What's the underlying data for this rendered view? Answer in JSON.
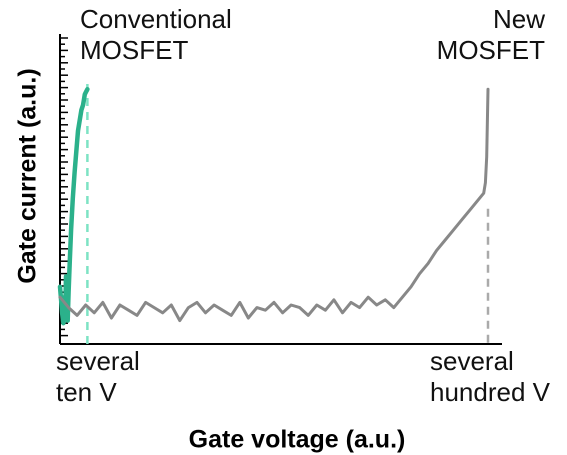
{
  "chart_data": {
    "type": "line",
    "xlabel": "Gate voltage (a.u.)",
    "ylabel": "Gate current (a.u.)",
    "x_tick_labels": [
      {
        "line1": "several",
        "line2": "ten V"
      },
      {
        "line1": "several",
        "line2": "hundred V"
      }
    ],
    "annotations": [
      {
        "line1": "Conventional",
        "line2": "MOSFET"
      },
      {
        "line1": "New",
        "line2": "MOSFET"
      }
    ],
    "xlim": [
      0,
      100
    ],
    "ylim": [
      0,
      100
    ],
    "grid": false,
    "series": [
      {
        "color": "#2bb18b",
        "x": [
          0.0,
          0.3,
          0.5,
          0.8,
          1.0,
          1.2,
          1.4,
          1.6,
          1.8,
          2.0,
          2.3,
          2.6,
          3.0,
          3.4,
          3.8,
          4.2,
          4.6,
          5.0,
          5.4,
          5.8,
          6.1,
          6.4
        ],
        "y": [
          22,
          16,
          12,
          8,
          18,
          10,
          26,
          14,
          9,
          20,
          32,
          44,
          56,
          66,
          74,
          82,
          86,
          90,
          92,
          96,
          97,
          98
        ]
      },
      {
        "color": "#888888",
        "x": [
          0,
          2,
          4,
          6,
          8,
          10,
          12,
          14,
          16,
          18,
          20,
          22,
          24,
          26,
          28,
          30,
          32,
          34,
          36,
          38,
          40,
          42,
          44,
          46,
          48,
          50,
          52,
          54,
          56,
          58,
          60,
          62,
          64,
          66,
          68,
          70,
          72,
          74,
          76,
          78,
          80,
          82,
          84,
          86,
          88,
          90,
          92,
          94,
          96,
          98,
          99,
          99.4,
          99.7,
          100
        ],
        "y": [
          18,
          14,
          11,
          15,
          12,
          16,
          10,
          15,
          13,
          11,
          16,
          14,
          12,
          15,
          9,
          14,
          16,
          12,
          15,
          13,
          11,
          16,
          10,
          14,
          13,
          16,
          12,
          15,
          14,
          11,
          15,
          13,
          17,
          12,
          16,
          14,
          18,
          15,
          17,
          14,
          18,
          22,
          27,
          31,
          36,
          40,
          44,
          48,
          52,
          56,
          58,
          62,
          72,
          98
        ]
      }
    ],
    "marker_lines": [
      {
        "x": 6.4,
        "color": "#7de3c4",
        "style": "dashed"
      },
      {
        "x": 100,
        "color": "#aaaaaa",
        "style": "dashed"
      }
    ]
  }
}
